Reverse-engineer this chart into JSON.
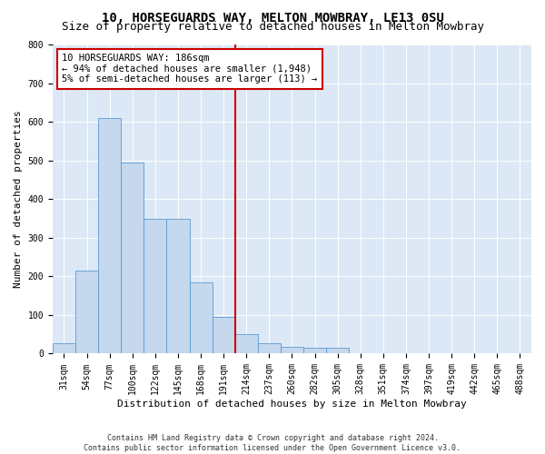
{
  "title": "10, HORSEGUARDS WAY, MELTON MOWBRAY, LE13 0SU",
  "subtitle": "Size of property relative to detached houses in Melton Mowbray",
  "xlabel": "Distribution of detached houses by size in Melton Mowbray",
  "ylabel": "Number of detached properties",
  "bin_labels": [
    "31sqm",
    "54sqm",
    "77sqm",
    "100sqm",
    "122sqm",
    "145sqm",
    "168sqm",
    "191sqm",
    "214sqm",
    "237sqm",
    "260sqm",
    "282sqm",
    "305sqm",
    "328sqm",
    "351sqm",
    "374sqm",
    "397sqm",
    "419sqm",
    "442sqm",
    "465sqm",
    "488sqm"
  ],
  "bar_heights": [
    28,
    215,
    610,
    495,
    350,
    350,
    185,
    95,
    50,
    28,
    18,
    15,
    15,
    0,
    0,
    0,
    0,
    0,
    0,
    0,
    0
  ],
  "bar_color": "#c5d8ed",
  "bar_edge_color": "#5b9bd5",
  "vline_color": "#cc0000",
  "annotation_line1": "10 HORSEGUARDS WAY: 186sqm",
  "annotation_line2": "← 94% of detached houses are smaller (1,948)",
  "annotation_line3": "5% of semi-detached houses are larger (113) →",
  "annotation_box_color": "#ffffff",
  "annotation_box_edge": "#cc0000",
  "ylim": [
    0,
    800
  ],
  "yticks": [
    0,
    100,
    200,
    300,
    400,
    500,
    600,
    700,
    800
  ],
  "bg_color": "#dce8f5",
  "footer_line1": "Contains HM Land Registry data © Crown copyright and database right 2024.",
  "footer_line2": "Contains public sector information licensed under the Open Government Licence v3.0.",
  "title_fontsize": 10,
  "subtitle_fontsize": 9,
  "axis_label_fontsize": 8,
  "tick_fontsize": 7,
  "footer_fontsize": 6
}
